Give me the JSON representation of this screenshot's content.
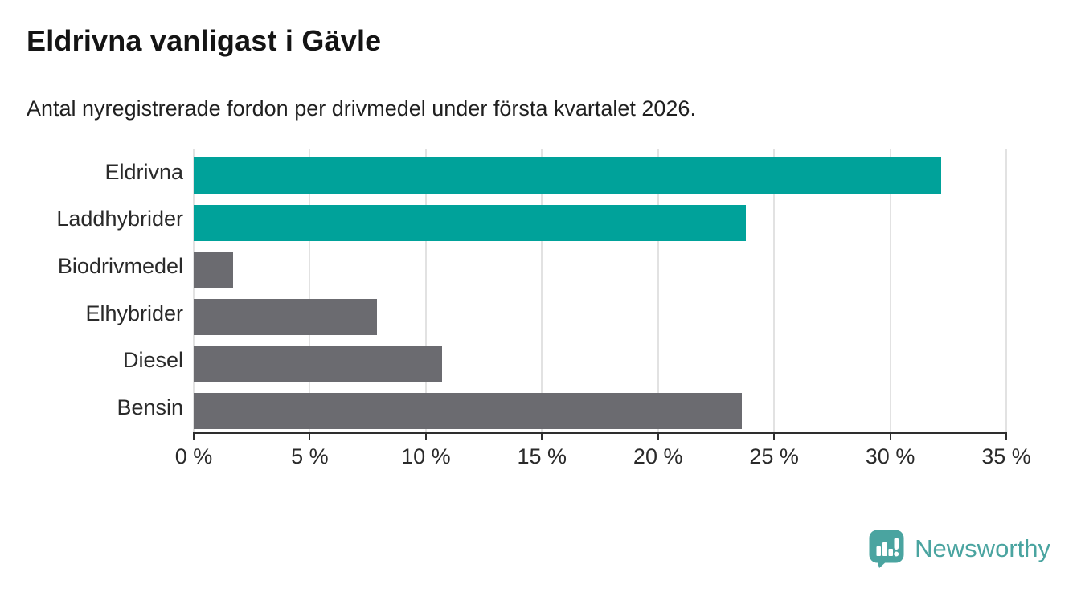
{
  "chart_data": {
    "type": "bar",
    "orientation": "horizontal",
    "title": "Eldrivna vanligast i Gävle",
    "subtitle": "Antal nyregistrerade fordon per drivmedel under första kvartalet 2026.",
    "categories": [
      "Eldrivna",
      "Laddhybrider",
      "Biodrivmedel",
      "Elhybrider",
      "Diesel",
      "Bensin"
    ],
    "values": [
      32.2,
      23.8,
      1.7,
      7.9,
      10.7,
      23.6
    ],
    "unit": "%",
    "xlabel": "",
    "ylabel": "",
    "xlim": [
      0,
      35
    ],
    "x_ticks": [
      {
        "label": "0 %",
        "value": 0
      },
      {
        "label": "5 %",
        "value": 5
      },
      {
        "label": "10 %",
        "value": 10
      },
      {
        "label": "15 %",
        "value": 15
      },
      {
        "label": "20 %",
        "value": 20
      },
      {
        "label": "25 %",
        "value": 25
      },
      {
        "label": "30 %",
        "value": 30
      },
      {
        "label": "35 %",
        "value": 35
      }
    ],
    "grid": true,
    "legend": false,
    "bar_colors": [
      "#00a29a",
      "#00a29a",
      "#6b6b70",
      "#6b6b70",
      "#6b6b70",
      "#6b6b70"
    ]
  },
  "colors": {
    "accent_teal": "#00a29a",
    "bar_gray": "#6b6b70",
    "gridline": "#e2e2e2",
    "axis": "#2e2e2e",
    "brand_teal": "#4aa4a0"
  },
  "footer": {
    "brand": "Newsworthy",
    "logo_icon": "newsworthy-speech-bubble-bar-chart-icon"
  }
}
